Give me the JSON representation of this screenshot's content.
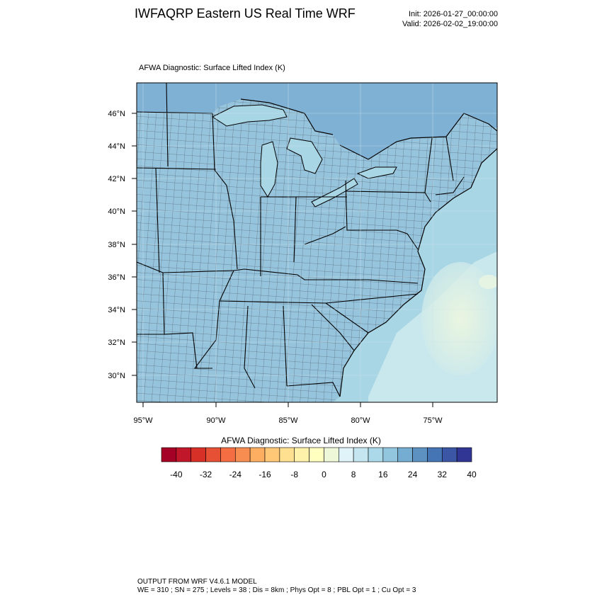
{
  "header": {
    "title": "IWFAQRP Eastern US Real Time WRF",
    "init": "Init: 2026-01-27_00:00:00",
    "valid": "Valid: 2026-02-02_19:00:00"
  },
  "map": {
    "field_title": "AFWA Diagnostic: Surface Lifted Index   (K)",
    "lat_labels": [
      "46°N",
      "44°N",
      "42°N",
      "40°N",
      "38°N",
      "36°N",
      "34°N",
      "32°N",
      "30°N"
    ],
    "lon_labels": [
      "95°W",
      "90°W",
      "85°W",
      "80°W",
      "75°W"
    ],
    "field_colors": {
      "ocean": "#a9d6e5",
      "land": "#97c4dd",
      "north": "#7fb1d5",
      "warm_patch": "#e6f5e3",
      "gulfstream": "#c9e8ee"
    }
  },
  "colorbar": {
    "title": "AFWA Diagnostic: Surface Lifted Index  (K)",
    "tick_labels": [
      "-40",
      "-32",
      "-24",
      "-16",
      "-8",
      "0",
      "8",
      "16",
      "24",
      "32",
      "40"
    ],
    "colors": [
      "#a50026",
      "#c0172a",
      "#d73027",
      "#e65034",
      "#f46d43",
      "#f88d51",
      "#fdae61",
      "#fec877",
      "#fee090",
      "#fef1a9",
      "#ffffbf",
      "#eef8d9",
      "#e0f3f8",
      "#c5e6f0",
      "#abd9e9",
      "#92c5de",
      "#74add1",
      "#5d91c1",
      "#4575b4",
      "#3a56a4",
      "#313695"
    ]
  },
  "footer": {
    "line1": "OUTPUT FROM WRF V4.6.1 MODEL",
    "line2": "WE = 310 ; SN = 275 ; Levels = 38 ; Dis = 8km ; Phys Opt = 8 ; PBL Opt = 1 ; Cu Opt = 3"
  }
}
